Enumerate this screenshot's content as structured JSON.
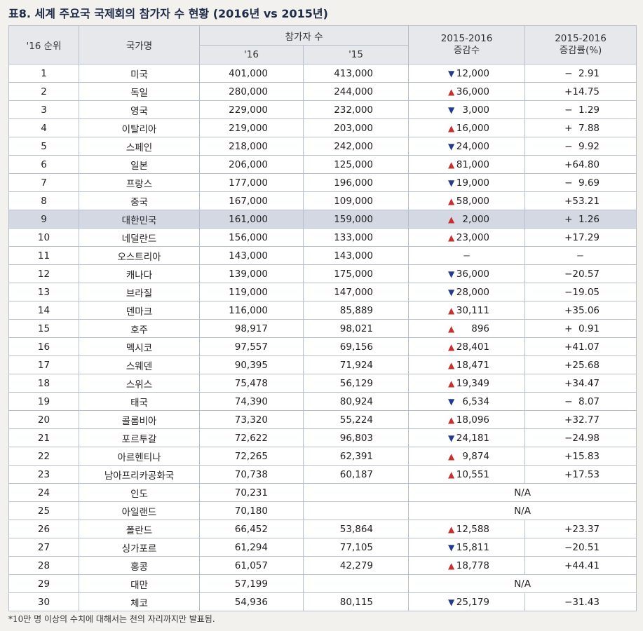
{
  "title": "표8. 세계 주요국 국제회의 참가자 수 현황 (2016년 vs 2015년)",
  "headers": {
    "rank": "'16 순위",
    "country": "국가명",
    "participants": "참가자 수",
    "y16": "'16",
    "y15": "'15",
    "change": "2015-2016\n증감수",
    "rate": "2015-2016\n증감률(%)"
  },
  "rows": [
    {
      "rank": "1",
      "country": "미국",
      "y16": "401,000",
      "y15": "413,000",
      "dir": "down",
      "change": "12,000",
      "rate": "−  2.91"
    },
    {
      "rank": "2",
      "country": "독일",
      "y16": "280,000",
      "y15": "244,000",
      "dir": "up",
      "change": "36,000",
      "rate": "+14.75"
    },
    {
      "rank": "3",
      "country": "영국",
      "y16": "229,000",
      "y15": "232,000",
      "dir": "down",
      "change": "3,000",
      "rate": "−  1.29"
    },
    {
      "rank": "4",
      "country": "이탈리아",
      "y16": "219,000",
      "y15": "203,000",
      "dir": "up",
      "change": "16,000",
      "rate": "+  7.88"
    },
    {
      "rank": "5",
      "country": "스페인",
      "y16": "218,000",
      "y15": "242,000",
      "dir": "down",
      "change": "24,000",
      "rate": "−  9.92"
    },
    {
      "rank": "6",
      "country": "일본",
      "y16": "206,000",
      "y15": "125,000",
      "dir": "up",
      "change": "81,000",
      "rate": "+64.80"
    },
    {
      "rank": "7",
      "country": "프랑스",
      "y16": "177,000",
      "y15": "196,000",
      "dir": "down",
      "change": "19,000",
      "rate": "−  9.69"
    },
    {
      "rank": "8",
      "country": "중국",
      "y16": "167,000",
      "y15": "109,000",
      "dir": "up",
      "change": "58,000",
      "rate": "+53.21"
    },
    {
      "rank": "9",
      "country": "대한민국",
      "y16": "161,000",
      "y15": "159,000",
      "dir": "up",
      "change": "2,000",
      "rate": "+  1.26",
      "highlight": true
    },
    {
      "rank": "10",
      "country": "네덜란드",
      "y16": "156,000",
      "y15": "133,000",
      "dir": "up",
      "change": "23,000",
      "rate": "+17.29"
    },
    {
      "rank": "11",
      "country": "오스트리아",
      "y16": "143,000",
      "y15": "143,000",
      "dir": "none",
      "change": "−",
      "rate": "−"
    },
    {
      "rank": "12",
      "country": "캐나다",
      "y16": "139,000",
      "y15": "175,000",
      "dir": "down",
      "change": "36,000",
      "rate": "−20.57"
    },
    {
      "rank": "13",
      "country": "브라질",
      "y16": "119,000",
      "y15": "147,000",
      "dir": "down",
      "change": "28,000",
      "rate": "−19.05"
    },
    {
      "rank": "14",
      "country": "덴마크",
      "y16": "116,000",
      "y15": "85,889",
      "dir": "up",
      "change": "30,111",
      "rate": "+35.06"
    },
    {
      "rank": "15",
      "country": "호주",
      "y16": "98,917",
      "y15": "98,021",
      "dir": "up",
      "change": "896",
      "rate": "+  0.91"
    },
    {
      "rank": "16",
      "country": "멕시코",
      "y16": "97,557",
      "y15": "69,156",
      "dir": "up",
      "change": "28,401",
      "rate": "+41.07"
    },
    {
      "rank": "17",
      "country": "스웨덴",
      "y16": "90,395",
      "y15": "71,924",
      "dir": "up",
      "change": "18,471",
      "rate": "+25.68"
    },
    {
      "rank": "18",
      "country": "스위스",
      "y16": "75,478",
      "y15": "56,129",
      "dir": "up",
      "change": "19,349",
      "rate": "+34.47"
    },
    {
      "rank": "19",
      "country": "태국",
      "y16": "74,390",
      "y15": "80,924",
      "dir": "down",
      "change": "6,534",
      "rate": "−  8.07"
    },
    {
      "rank": "20",
      "country": "콜롬비아",
      "y16": "73,320",
      "y15": "55,224",
      "dir": "up",
      "change": "18,096",
      "rate": "+32.77"
    },
    {
      "rank": "21",
      "country": "포르투갈",
      "y16": "72,622",
      "y15": "96,803",
      "dir": "down",
      "change": "24,181",
      "rate": "−24.98"
    },
    {
      "rank": "22",
      "country": "아르헨티나",
      "y16": "72,265",
      "y15": "62,391",
      "dir": "up",
      "change": "9,874",
      "rate": "+15.83"
    },
    {
      "rank": "23",
      "country": "남아프리카공화국",
      "y16": "70,738",
      "y15": "60,187",
      "dir": "up",
      "change": "10,551",
      "rate": "+17.53"
    },
    {
      "rank": "24",
      "country": "인도",
      "y16": "70,231",
      "y15": "",
      "dir": "na",
      "change": "N/A",
      "rate": ""
    },
    {
      "rank": "25",
      "country": "아일랜드",
      "y16": "70,180",
      "y15": "",
      "dir": "na",
      "change": "N/A",
      "rate": ""
    },
    {
      "rank": "26",
      "country": "폴란드",
      "y16": "66,452",
      "y15": "53,864",
      "dir": "up",
      "change": "12,588",
      "rate": "+23.37"
    },
    {
      "rank": "27",
      "country": "싱가포르",
      "y16": "61,294",
      "y15": "77,105",
      "dir": "down",
      "change": "15,811",
      "rate": "−20.51"
    },
    {
      "rank": "28",
      "country": "홍콩",
      "y16": "61,057",
      "y15": "42,279",
      "dir": "up",
      "change": "18,778",
      "rate": "+44.41"
    },
    {
      "rank": "29",
      "country": "대만",
      "y16": "57,199",
      "y15": "",
      "dir": "na",
      "change": "N/A",
      "rate": ""
    },
    {
      "rank": "30",
      "country": "체코",
      "y16": "54,936",
      "y15": "80,115",
      "dir": "down",
      "change": "25,179",
      "rate": "−31.43"
    }
  ],
  "arrows": {
    "up": "▲",
    "down": "▼"
  },
  "colors": {
    "up": "#c8302e",
    "down": "#223a8f",
    "highlight": "#d3d8e3",
    "header": "#e6e8ec"
  },
  "footnote": "*10만 명 이상의 수치에 대해서는 천의 자리까지만 발표됨."
}
